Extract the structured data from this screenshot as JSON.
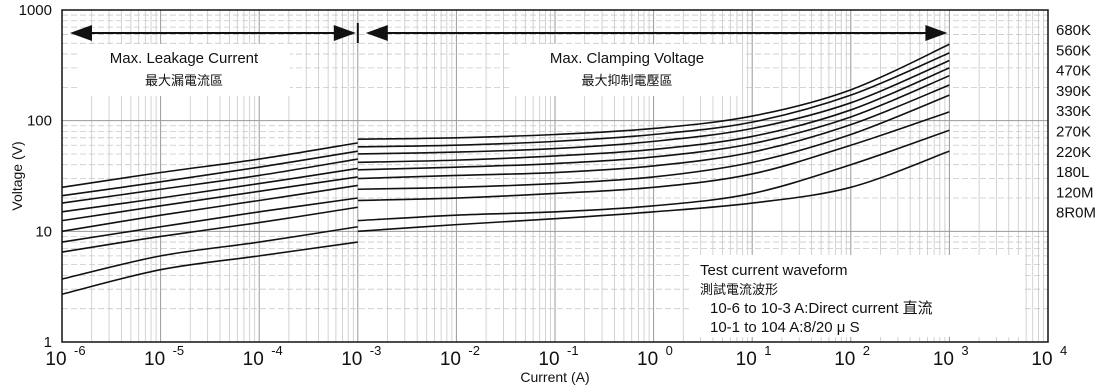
{
  "chart_data": {
    "type": "line",
    "xlabel": "Current (A)",
    "ylabel": "Voltage (V)",
    "x_scale": "log",
    "y_scale": "log",
    "xlim": [
      1e-06,
      10000.0
    ],
    "ylim": [
      1,
      1000
    ],
    "grid": true,
    "x_tick_labels": [
      "10",
      "10",
      "10",
      "10",
      "10",
      "10",
      "10",
      "10",
      "10",
      "10",
      "10"
    ],
    "x_tick_exponents": [
      "-6",
      "-5",
      "-4",
      "-3",
      "-2",
      "-1",
      "0",
      "1",
      "2",
      "3",
      "4"
    ],
    "y_tick_labels": [
      "1",
      "10",
      "100",
      "1000"
    ],
    "legend_position": "right",
    "regions": [
      {
        "label_en": "Max. Leakage Current",
        "label_zh": "最大漏電流區",
        "x_range": [
          1e-06,
          0.001
        ]
      },
      {
        "label_en": "Max. Clamping Voltage",
        "label_zh": "最大抑制電壓區",
        "x_range": [
          0.001,
          1000.0
        ]
      }
    ],
    "annotation": {
      "lines": [
        "Test current waveform",
        "測試電流波形",
        "10-6 to 10-3 A:Direct current 直流",
        "10-1 to 104  A:8/20 μ S"
      ]
    },
    "series": [
      {
        "name": "680K",
        "leakage": [
          [
            1e-06,
            25
          ],
          [
            1e-05,
            34
          ],
          [
            0.0001,
            45
          ],
          [
            0.001,
            63
          ]
        ],
        "clamp": [
          [
            0.001,
            68
          ],
          [
            0.01,
            70
          ],
          [
            0.1,
            75
          ],
          [
            1,
            85
          ],
          [
            10,
            110
          ],
          [
            100,
            190
          ],
          [
            1000,
            490
          ]
        ]
      },
      {
        "name": "560K",
        "leakage": [
          [
            1e-06,
            21
          ],
          [
            1e-05,
            28
          ],
          [
            0.0001,
            38
          ],
          [
            0.001,
            53
          ]
        ],
        "clamp": [
          [
            0.001,
            58
          ],
          [
            0.01,
            60
          ],
          [
            0.1,
            65
          ],
          [
            1,
            75
          ],
          [
            10,
            97
          ],
          [
            100,
            170
          ],
          [
            1000,
            410
          ]
        ]
      },
      {
        "name": "470K",
        "leakage": [
          [
            1e-06,
            18
          ],
          [
            1e-05,
            24
          ],
          [
            0.0001,
            32
          ],
          [
            0.001,
            45
          ]
        ],
        "clamp": [
          [
            0.001,
            50
          ],
          [
            0.01,
            52
          ],
          [
            0.1,
            56
          ],
          [
            1,
            65
          ],
          [
            10,
            85
          ],
          [
            100,
            145
          ],
          [
            1000,
            350
          ]
        ]
      },
      {
        "name": "390K",
        "leakage": [
          [
            1e-06,
            15
          ],
          [
            1e-05,
            20
          ],
          [
            0.0001,
            27
          ],
          [
            0.001,
            37
          ]
        ],
        "clamp": [
          [
            0.001,
            42
          ],
          [
            0.01,
            44
          ],
          [
            0.1,
            48
          ],
          [
            1,
            55
          ],
          [
            10,
            72
          ],
          [
            100,
            125
          ],
          [
            1000,
            300
          ]
        ]
      },
      {
        "name": "330K",
        "leakage": [
          [
            1e-06,
            12.5
          ],
          [
            1e-05,
            17
          ],
          [
            0.0001,
            23
          ],
          [
            0.001,
            31
          ]
        ],
        "clamp": [
          [
            0.001,
            36
          ],
          [
            0.01,
            38
          ],
          [
            0.1,
            41
          ],
          [
            1,
            47
          ],
          [
            10,
            62
          ],
          [
            100,
            108
          ],
          [
            1000,
            255
          ]
        ]
      },
      {
        "name": "270K",
        "leakage": [
          [
            1e-06,
            10
          ],
          [
            1e-05,
            14
          ],
          [
            0.0001,
            19
          ],
          [
            0.001,
            26
          ]
        ],
        "clamp": [
          [
            0.001,
            30
          ],
          [
            0.01,
            32
          ],
          [
            0.1,
            34
          ],
          [
            1,
            39
          ],
          [
            10,
            52
          ],
          [
            100,
            92
          ],
          [
            1000,
            210
          ]
        ]
      },
      {
        "name": "220K",
        "leakage": [
          [
            1e-06,
            8
          ],
          [
            1e-05,
            11
          ],
          [
            0.0001,
            15
          ],
          [
            0.001,
            20
          ]
        ],
        "clamp": [
          [
            0.001,
            24
          ],
          [
            0.01,
            25
          ],
          [
            0.1,
            27
          ],
          [
            1,
            31
          ],
          [
            10,
            42
          ],
          [
            100,
            75
          ],
          [
            1000,
            170
          ]
        ]
      },
      {
        "name": "180L",
        "leakage": [
          [
            1e-06,
            6.5
          ],
          [
            1e-05,
            9
          ],
          [
            0.0001,
            12
          ],
          [
            0.001,
            16.5
          ]
        ],
        "clamp": [
          [
            0.001,
            19
          ],
          [
            0.01,
            20
          ],
          [
            0.1,
            22
          ],
          [
            1,
            25
          ],
          [
            10,
            33
          ],
          [
            100,
            60
          ],
          [
            1000,
            120
          ]
        ]
      },
      {
        "name": "120M",
        "leakage": [
          [
            1e-06,
            3.7
          ],
          [
            1e-05,
            6
          ],
          [
            0.0001,
            8
          ],
          [
            0.001,
            11
          ]
        ],
        "clamp": [
          [
            0.001,
            12.5
          ],
          [
            0.01,
            14
          ],
          [
            0.1,
            15
          ],
          [
            1,
            17
          ],
          [
            10,
            22
          ],
          [
            100,
            40
          ],
          [
            1000,
            82
          ]
        ]
      },
      {
        "name": "8R0M",
        "leakage": [
          [
            1e-06,
            2.7
          ],
          [
            1e-05,
            4.5
          ],
          [
            0.0001,
            6
          ],
          [
            0.001,
            8
          ]
        ],
        "clamp": [
          [
            0.001,
            10
          ],
          [
            0.01,
            11.5
          ],
          [
            0.1,
            13
          ],
          [
            1,
            15
          ],
          [
            10,
            18
          ],
          [
            100,
            25
          ],
          [
            1000,
            53
          ]
        ]
      }
    ]
  }
}
